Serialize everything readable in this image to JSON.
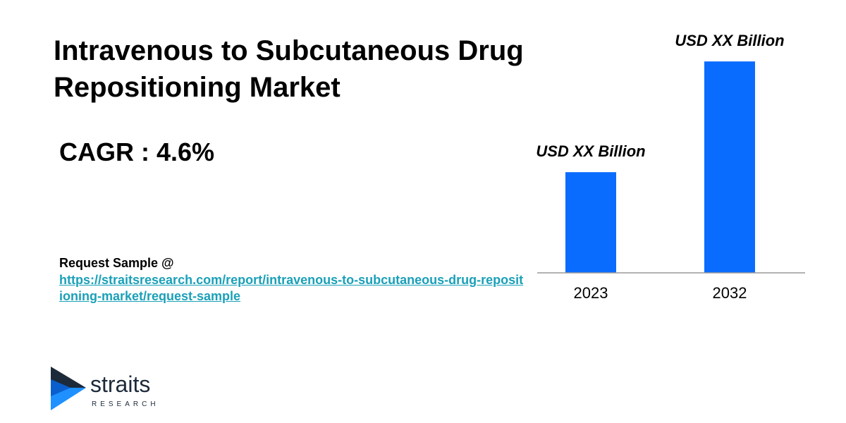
{
  "header": {
    "title": "Intravenous to Subcutaneous Drug Repositioning Market",
    "cagr": "CAGR : 4.6%"
  },
  "request_sample": {
    "label": "Request Sample @",
    "url": "https://straitsresearch.com/report/intravenous-to-subcutaneous-drug-repositioning-market/request-sample"
  },
  "logo": {
    "name": "straits",
    "sub": "RESEARCH",
    "icon": "straits-arrow-icon"
  },
  "colors": {
    "bar": "#0a6cff",
    "link": "#1aa0b8",
    "logo_dark": "#1d2a3a",
    "logo_blue": "#1e90ff"
  },
  "chart_data": {
    "type": "bar",
    "categories": [
      "2023",
      "2032"
    ],
    "values": [
      1.0,
      2.1
    ],
    "data_labels": [
      "USD XX Billion",
      "USD XX Billion"
    ],
    "title": "",
    "xlabel": "",
    "ylabel": "",
    "ylim": [
      0,
      2.15
    ],
    "grid": false,
    "legend": "none"
  }
}
